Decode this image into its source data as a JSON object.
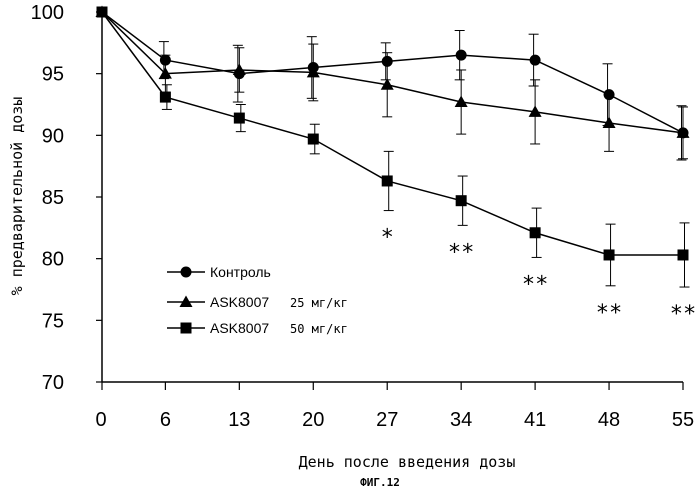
{
  "chart_data": {
    "type": "line",
    "xlabel": "День после введения дозы",
    "ylabel": "% предварительной дозы",
    "x": [
      0,
      6,
      13,
      20,
      27,
      34,
      41,
      48,
      55
    ],
    "xticks": [
      "0",
      "6",
      "13",
      "20",
      "27",
      "34",
      "41",
      "48",
      "55"
    ],
    "yticks": [
      "70",
      "75",
      "80",
      "85",
      "90",
      "95",
      "100"
    ],
    "ylim": [
      70,
      100
    ],
    "series": [
      {
        "name": "Контроль",
        "marker": "circle",
        "values": [
          100,
          96.1,
          95.0,
          95.5,
          96.0,
          96.5,
          96.1,
          93.3,
          90.2
        ],
        "errors": [
          0,
          1.5,
          2.3,
          2.5,
          1.5,
          2.0,
          2.1,
          2.5,
          2.2
        ]
      },
      {
        "name": "ASK8007",
        "unit": "25 мг/кг",
        "marker": "triangle",
        "values": [
          100,
          95.0,
          95.3,
          95.1,
          94.1,
          92.7,
          91.9,
          91.0,
          90.2
        ],
        "errors": [
          0,
          1.5,
          1.8,
          2.3,
          2.6,
          2.6,
          2.6,
          2.3,
          2.1
        ]
      },
      {
        "name": "ASK8007",
        "unit": "50 мг/кг",
        "marker": "square",
        "values": [
          100,
          93.1,
          91.4,
          89.7,
          86.3,
          84.7,
          82.1,
          80.3,
          80.3
        ],
        "errors": [
          0,
          1.0,
          1.1,
          1.2,
          2.4,
          2.0,
          2.0,
          2.5,
          2.6
        ]
      }
    ],
    "annotations": [
      {
        "x": 27,
        "text": "*"
      },
      {
        "x": 34,
        "text": "**"
      },
      {
        "x": 41,
        "text": "**"
      },
      {
        "x": 48,
        "text": "**"
      },
      {
        "x": 55,
        "text": "**"
      }
    ],
    "legend_position": "bottom-left",
    "grid": false
  },
  "figure_label": "ФИГ.12"
}
